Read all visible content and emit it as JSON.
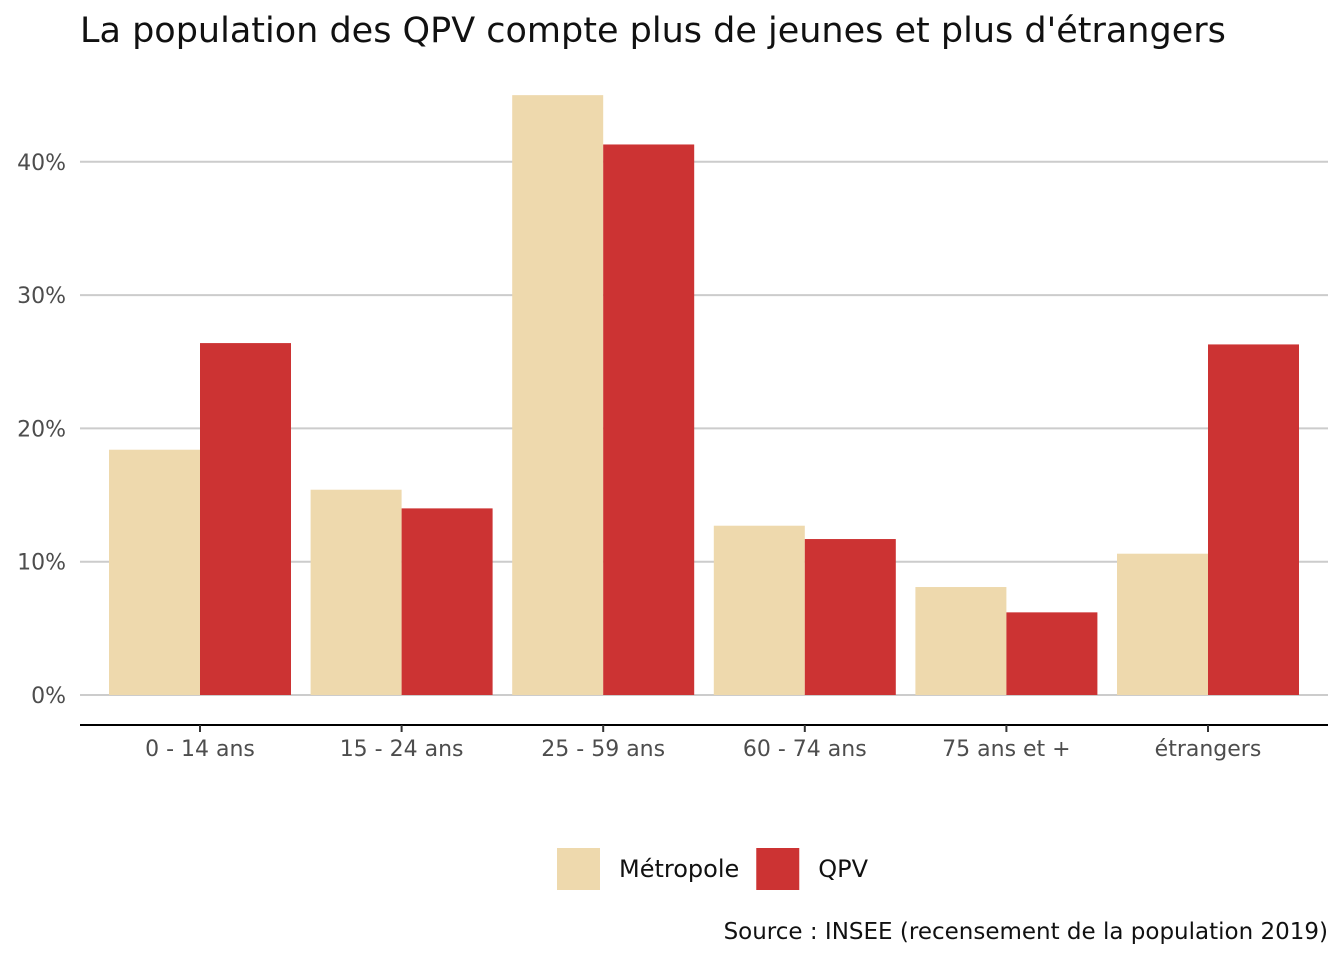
{
  "chart_data": {
    "type": "bar",
    "title": "La population des QPV compte plus de jeunes et plus d'étrangers",
    "xlabel": "",
    "ylabel": "",
    "categories": [
      "0 - 14 ans",
      "15 - 24 ans",
      "25 - 59 ans",
      "60 - 74 ans",
      "75 ans et +",
      "étrangers"
    ],
    "series": [
      {
        "name": "Métropole",
        "color": "#EED9AD",
        "values": [
          18.4,
          15.4,
          45.0,
          12.7,
          8.1,
          10.6
        ]
      },
      {
        "name": "QPV",
        "color": "#CC3333",
        "values": [
          26.4,
          14.0,
          41.3,
          11.7,
          6.2,
          26.3
        ]
      }
    ],
    "ylim": [
      0,
      45
    ],
    "yticks": [
      0,
      10,
      20,
      30,
      40
    ],
    "ytick_labels": [
      "0%",
      "10%",
      "20%",
      "30%",
      "40%"
    ],
    "grid": true,
    "legend_position": "bottom",
    "caption": "Source : INSEE (recensement de la population 2019)"
  }
}
